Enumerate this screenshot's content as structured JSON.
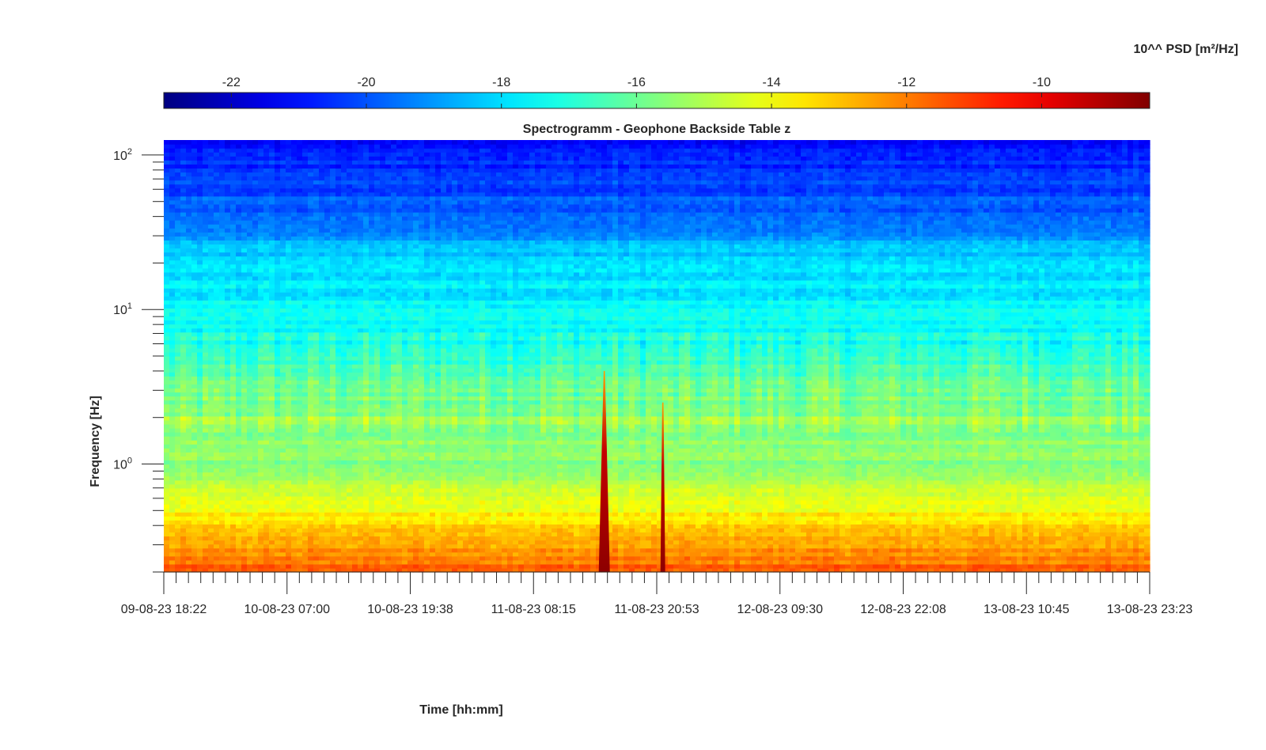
{
  "chart_data": {
    "type": "heatmap",
    "title": "Spectrogramm - Geophone Backside Table z",
    "xlabel": "Time [hh:mm]",
    "ylabel": "Frequency [Hz]",
    "x_ticks": [
      "09-08-23 18:22",
      "10-08-23 07:00",
      "10-08-23 19:38",
      "11-08-23 08:15",
      "11-08-23 20:53",
      "12-08-23 09:30",
      "12-08-23 22:08",
      "13-08-23 10:45",
      "13-08-23 23:23"
    ],
    "y_scale": "log",
    "y_ticks": [
      {
        "base": "10",
        "exp": "0",
        "value": 1
      },
      {
        "base": "10",
        "exp": "1",
        "value": 10
      },
      {
        "base": "10",
        "exp": "2",
        "value": 100
      }
    ],
    "ylim": [
      0.2,
      125
    ],
    "colorbar": {
      "label": "10^^ PSD [m²/Hz]",
      "ticks": [
        "-22",
        "-20",
        "-18",
        "-16",
        "-14",
        "-12",
        "-10"
      ],
      "tick_values": [
        -22,
        -20,
        -18,
        -16,
        -14,
        -12,
        -10
      ],
      "range": [
        -23,
        -8.4
      ],
      "colormap": "jet"
    },
    "transient_events": [
      {
        "time": "11-08-23 ~15:30",
        "log10_psd_peak": -9
      },
      {
        "time": "11-08-23 ~21:30",
        "log10_psd_peak": -10
      }
    ],
    "band_mean_log10_psd": [
      {
        "freq_hz": 125,
        "value": -21.0
      },
      {
        "freq_hz": 40,
        "value": -19.6
      },
      {
        "freq_hz": 22,
        "value": -18.2
      },
      {
        "freq_hz": 10,
        "value": -17.6
      },
      {
        "freq_hz": 5,
        "value": -16.9
      },
      {
        "freq_hz": 2,
        "value": -15.4
      },
      {
        "freq_hz": 1,
        "value": -15.7
      },
      {
        "freq_hz": 0.5,
        "value": -13.8
      },
      {
        "freq_hz": 0.2,
        "value": -11.6
      }
    ]
  }
}
